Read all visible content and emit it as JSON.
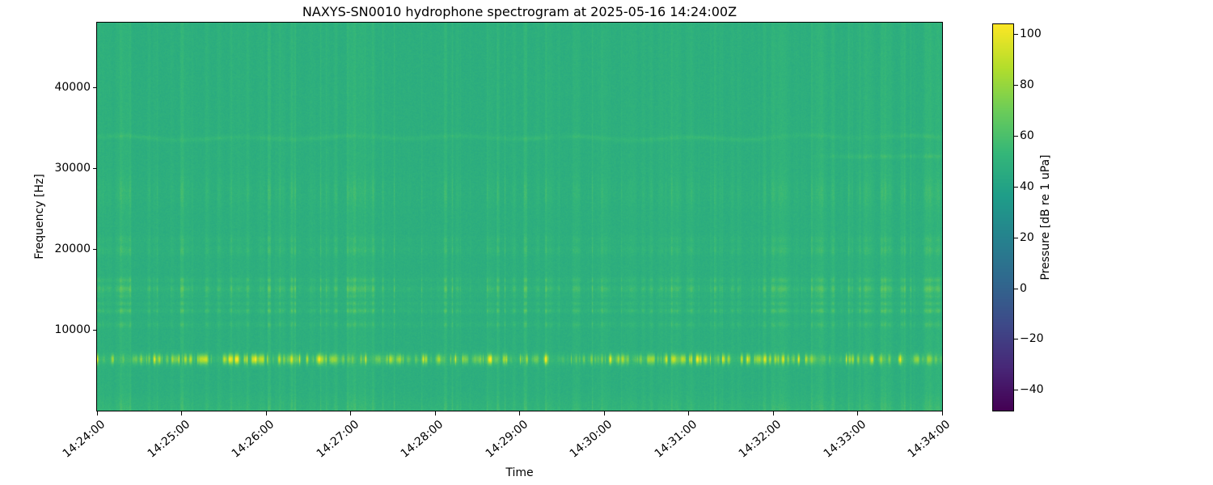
{
  "figure": {
    "background_color": "#ffffff",
    "text_color": "#000000"
  },
  "chart_data": {
    "type": "heatmap",
    "subtype": "spectrogram",
    "title": "NAXYS-SN0010 hydrophone spectrogram at 2025-05-16 14:24:00Z",
    "xlabel": "Time",
    "ylabel": "Frequency [Hz]",
    "x_ticks": [
      "14:24:00",
      "14:25:00",
      "14:26:00",
      "14:27:00",
      "14:28:00",
      "14:29:00",
      "14:30:00",
      "14:31:00",
      "14:32:00",
      "14:33:00",
      "14:34:00"
    ],
    "y_ticks": [
      {
        "label": "10000",
        "value": 10000
      },
      {
        "label": "20000",
        "value": 20000
      },
      {
        "label": "30000",
        "value": 30000
      },
      {
        "label": "40000",
        "value": 40000
      }
    ],
    "axes": {
      "ylim": [
        0,
        48000
      ],
      "x_span_seconds": 600,
      "grid": false
    },
    "colorbar": {
      "label": "Pressure [dB re 1 uPa]",
      "colormap": "viridis",
      "position": "right",
      "clim": [
        -48,
        104
      ],
      "ticks": [
        {
          "label": "100",
          "value": 100
        },
        {
          "label": "80",
          "value": 80
        },
        {
          "label": "60",
          "value": 60
        },
        {
          "label": "40",
          "value": 40
        },
        {
          "label": "20",
          "value": 20
        },
        {
          "label": "0",
          "value": 0
        },
        {
          "label": "−20",
          "value": -20
        },
        {
          "label": "−40",
          "value": -40
        }
      ]
    },
    "content": {
      "background_db": 50,
      "pixel_noise_db": 2.4,
      "broadband_striation_db": 4.5,
      "low_band": {
        "cutoff_hz": 1700,
        "gain_db": 5
      },
      "bands": [
        {
          "center_hz": 6400,
          "sigma_hz": 600,
          "base_db": 5,
          "burst_db": 44,
          "mode": "burst",
          "note": "bright intermittent tonal band"
        },
        {
          "center_hz": 10700,
          "sigma_hz": 350,
          "base_db": 1.5,
          "striation_db": 5
        },
        {
          "center_hz": 12400,
          "sigma_hz": 300,
          "base_db": 2,
          "striation_db": 9
        },
        {
          "center_hz": 13300,
          "sigma_hz": 240,
          "base_db": 1.5,
          "striation_db": 6
        },
        {
          "center_hz": 14200,
          "sigma_hz": 260,
          "base_db": 1,
          "striation_db": 5
        },
        {
          "center_hz": 15100,
          "sigma_hz": 480,
          "base_db": 2.5,
          "striation_db": 11
        },
        {
          "center_hz": 16200,
          "sigma_hz": 320,
          "base_db": 1.5,
          "striation_db": 7
        },
        {
          "center_hz": 19900,
          "sigma_hz": 600,
          "base_db": 1,
          "striation_db": 5
        },
        {
          "center_hz": 21200,
          "sigma_hz": 450,
          "base_db": 0.8,
          "striation_db": 3.5
        },
        {
          "center_hz": 27000,
          "sigma_hz": 1800,
          "base_db": 0.5,
          "striation_db": 4
        },
        {
          "center_hz": 33800,
          "sigma_hz": 300,
          "base_db": 4,
          "striation_db": 0,
          "mode": "wavy",
          "wobble_hz": 300,
          "note": "faint wavy tonal line"
        },
        {
          "center_hz": 31500,
          "sigma_hz": 280,
          "base_db": 3.5,
          "striation_db": 2,
          "start_frac": 0.84,
          "note": "faint tonal appearing after ~14:32:30"
        }
      ]
    }
  }
}
